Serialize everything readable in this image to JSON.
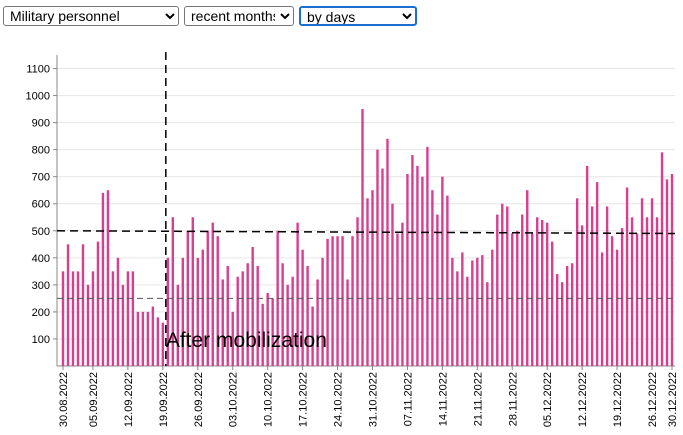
{
  "controls": [
    "Military personnel",
    "recent months",
    "by days"
  ],
  "chart_data": {
    "type": "bar",
    "categories": [
      "30.08.2022",
      null,
      null,
      null,
      null,
      null,
      "05.09.2022",
      null,
      null,
      null,
      null,
      null,
      null,
      "12.09.2022",
      null,
      null,
      null,
      null,
      null,
      null,
      "19.09.2022",
      null,
      null,
      null,
      null,
      null,
      null,
      "26.09.2022",
      null,
      null,
      null,
      null,
      null,
      null,
      "03.10.2022",
      null,
      null,
      null,
      null,
      null,
      null,
      "10.10.2022",
      null,
      null,
      null,
      null,
      null,
      null,
      "17.10.2022",
      null,
      null,
      null,
      null,
      null,
      null,
      "24.10.2022",
      null,
      null,
      null,
      null,
      null,
      null,
      "31.10.2022",
      null,
      null,
      null,
      null,
      null,
      null,
      "07.11.2022",
      null,
      null,
      null,
      null,
      null,
      null,
      "14.11.2022",
      null,
      null,
      null,
      null,
      null,
      null,
      "21.11.2022",
      null,
      null,
      null,
      null,
      null,
      null,
      "28.11.2022",
      null,
      null,
      null,
      null,
      null,
      null,
      "05.12.2022",
      null,
      null,
      null,
      null,
      null,
      null,
      "12.12.2022",
      null,
      null,
      null,
      null,
      null,
      null,
      "19.12.2022",
      null,
      null,
      null,
      null,
      null,
      null,
      "26.12.2022",
      null,
      null,
      null,
      "30.12.2022"
    ],
    "values": [
      350,
      450,
      350,
      350,
      450,
      300,
      350,
      460,
      640,
      650,
      350,
      400,
      300,
      350,
      350,
      200,
      200,
      200,
      220,
      180,
      160,
      400,
      550,
      300,
      400,
      500,
      550,
      400,
      430,
      500,
      530,
      480,
      320,
      370,
      200,
      330,
      350,
      380,
      440,
      370,
      230,
      270,
      250,
      500,
      380,
      300,
      330,
      530,
      430,
      370,
      220,
      320,
      400,
      470,
      480,
      480,
      480,
      320,
      480,
      550,
      950,
      620,
      650,
      800,
      730,
      840,
      600,
      490,
      530,
      710,
      780,
      740,
      700,
      810,
      650,
      560,
      700,
      630,
      400,
      350,
      420,
      330,
      390,
      400,
      410,
      310,
      430,
      560,
      600,
      590,
      490,
      500,
      560,
      650,
      490,
      550,
      540,
      530,
      460,
      340,
      310,
      370,
      380,
      620,
      520,
      740,
      590,
      680,
      420,
      590,
      480,
      430,
      510,
      660,
      550,
      490,
      620,
      550,
      620,
      550,
      790,
      690,
      710
    ],
    "color": "#d6408f",
    "ylim": [
      0,
      1150
    ],
    "yticks": [
      100,
      200,
      300,
      400,
      500,
      600,
      700,
      800,
      900,
      1000,
      1100
    ],
    "grid": true,
    "reference_lines": [
      {
        "values": [
          500,
          490
        ]
      },
      {
        "values": [
          250,
          250
        ]
      }
    ],
    "annotation": {
      "text": "After mobilization",
      "index": 21
    }
  }
}
